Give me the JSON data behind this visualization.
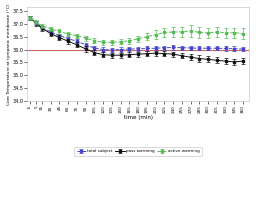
{
  "title": "",
  "xlabel": "time (min)",
  "ylabel": "Core Temperature at tympanic membrane (°C)",
  "xlim": [
    -10,
    370
  ],
  "ylim": [
    34.0,
    37.65
  ],
  "yticks": [
    34.0,
    34.5,
    35.0,
    35.5,
    36.0,
    36.5,
    37.0,
    37.5
  ],
  "xticks": [
    -5,
    5,
    15,
    30,
    45,
    60,
    75,
    90,
    105,
    120,
    135,
    150,
    165,
    180,
    195,
    210,
    225,
    240,
    255,
    270,
    285,
    300,
    315,
    330,
    345,
    360
  ],
  "hline_y": 36.0,
  "hline_color": "#cc6666",
  "time": [
    -5,
    5,
    15,
    30,
    45,
    60,
    75,
    90,
    105,
    120,
    135,
    150,
    165,
    180,
    195,
    210,
    225,
    240,
    255,
    270,
    285,
    300,
    315,
    330,
    345,
    360
  ],
  "total_subject": [
    37.22,
    37.02,
    36.85,
    36.68,
    36.54,
    36.42,
    36.32,
    36.18,
    36.06,
    36.0,
    35.98,
    36.0,
    36.02,
    36.03,
    36.04,
    36.05,
    36.07,
    36.08,
    36.07,
    36.06,
    36.05,
    36.05,
    36.05,
    36.04,
    36.03,
    36.02
  ],
  "total_subject_err": [
    0.06,
    0.07,
    0.08,
    0.08,
    0.08,
    0.08,
    0.08,
    0.08,
    0.08,
    0.08,
    0.08,
    0.08,
    0.08,
    0.08,
    0.08,
    0.08,
    0.08,
    0.08,
    0.08,
    0.08,
    0.08,
    0.08,
    0.08,
    0.08,
    0.09,
    0.09
  ],
  "pass_warming": [
    37.22,
    37.02,
    36.82,
    36.62,
    36.46,
    36.32,
    36.18,
    36.02,
    35.88,
    35.8,
    35.78,
    35.78,
    35.8,
    35.82,
    35.84,
    35.86,
    35.84,
    35.82,
    35.76,
    35.7,
    35.65,
    35.62,
    35.58,
    35.55,
    35.52,
    35.55
  ],
  "pass_warming_err": [
    0.08,
    0.09,
    0.1,
    0.1,
    0.1,
    0.1,
    0.1,
    0.1,
    0.1,
    0.1,
    0.1,
    0.1,
    0.1,
    0.1,
    0.1,
    0.1,
    0.1,
    0.1,
    0.1,
    0.11,
    0.12,
    0.12,
    0.12,
    0.13,
    0.13,
    0.13
  ],
  "active_warming": [
    37.22,
    37.05,
    36.92,
    36.8,
    36.7,
    36.6,
    36.54,
    36.44,
    36.34,
    36.28,
    36.28,
    36.3,
    36.34,
    36.42,
    36.5,
    36.58,
    36.66,
    36.68,
    36.68,
    36.72,
    36.66,
    36.64,
    36.68,
    36.65,
    36.65,
    36.62
  ],
  "active_warming_err": [
    0.06,
    0.08,
    0.08,
    0.08,
    0.08,
    0.08,
    0.08,
    0.1,
    0.1,
    0.1,
    0.1,
    0.1,
    0.12,
    0.12,
    0.14,
    0.16,
    0.18,
    0.2,
    0.2,
    0.22,
    0.2,
    0.2,
    0.2,
    0.2,
    0.2,
    0.2
  ],
  "total_color": "#4444cc",
  "pass_color": "#111111",
  "active_color": "#55bb55",
  "bg_color": "#ffffff",
  "legend_labels": [
    "total subject",
    "pass warming",
    "active warming"
  ]
}
